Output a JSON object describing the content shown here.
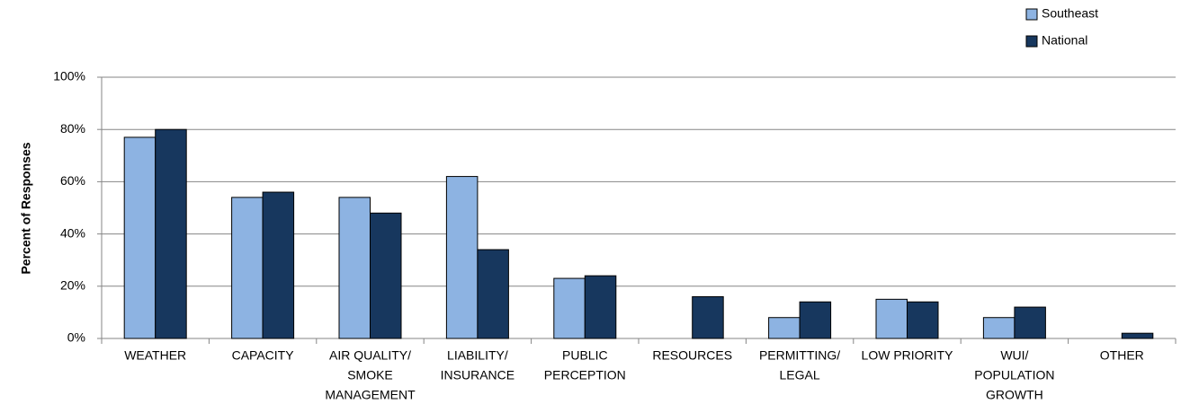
{
  "chart_data": {
    "type": "bar",
    "y_label": "Percent of Responses",
    "categories": [
      [
        "WEATHER"
      ],
      [
        "CAPACITY"
      ],
      [
        "AIR QUALITY/",
        "SMOKE",
        "MANAGEMENT"
      ],
      [
        "LIABILITY/",
        "INSURANCE"
      ],
      [
        "PUBLIC",
        "PERCEPTION"
      ],
      [
        "RESOURCES"
      ],
      [
        "PERMITTING/",
        "LEGAL"
      ],
      [
        "LOW PRIORITY"
      ],
      [
        "WUI/",
        "POPULATION",
        "GROWTH"
      ],
      [
        "OTHER"
      ]
    ],
    "series": [
      {
        "name": "Southeast",
        "color": "#8db3e2",
        "values": [
          77,
          54,
          54,
          62,
          23,
          0,
          8,
          15,
          8,
          0
        ]
      },
      {
        "name": "National",
        "color": "#17375e",
        "values": [
          80,
          56,
          48,
          34,
          24,
          16,
          14,
          14,
          12,
          2
        ]
      }
    ],
    "ylim": [
      0,
      100
    ],
    "yticks": [
      {
        "value": 0,
        "label": "0%"
      },
      {
        "value": 20,
        "label": "20%"
      },
      {
        "value": 40,
        "label": "40%"
      },
      {
        "value": 60,
        "label": "60%"
      },
      {
        "value": 80,
        "label": "80%"
      },
      {
        "value": 100,
        "label": "100%"
      }
    ],
    "grid": true,
    "legend": "top-right"
  }
}
